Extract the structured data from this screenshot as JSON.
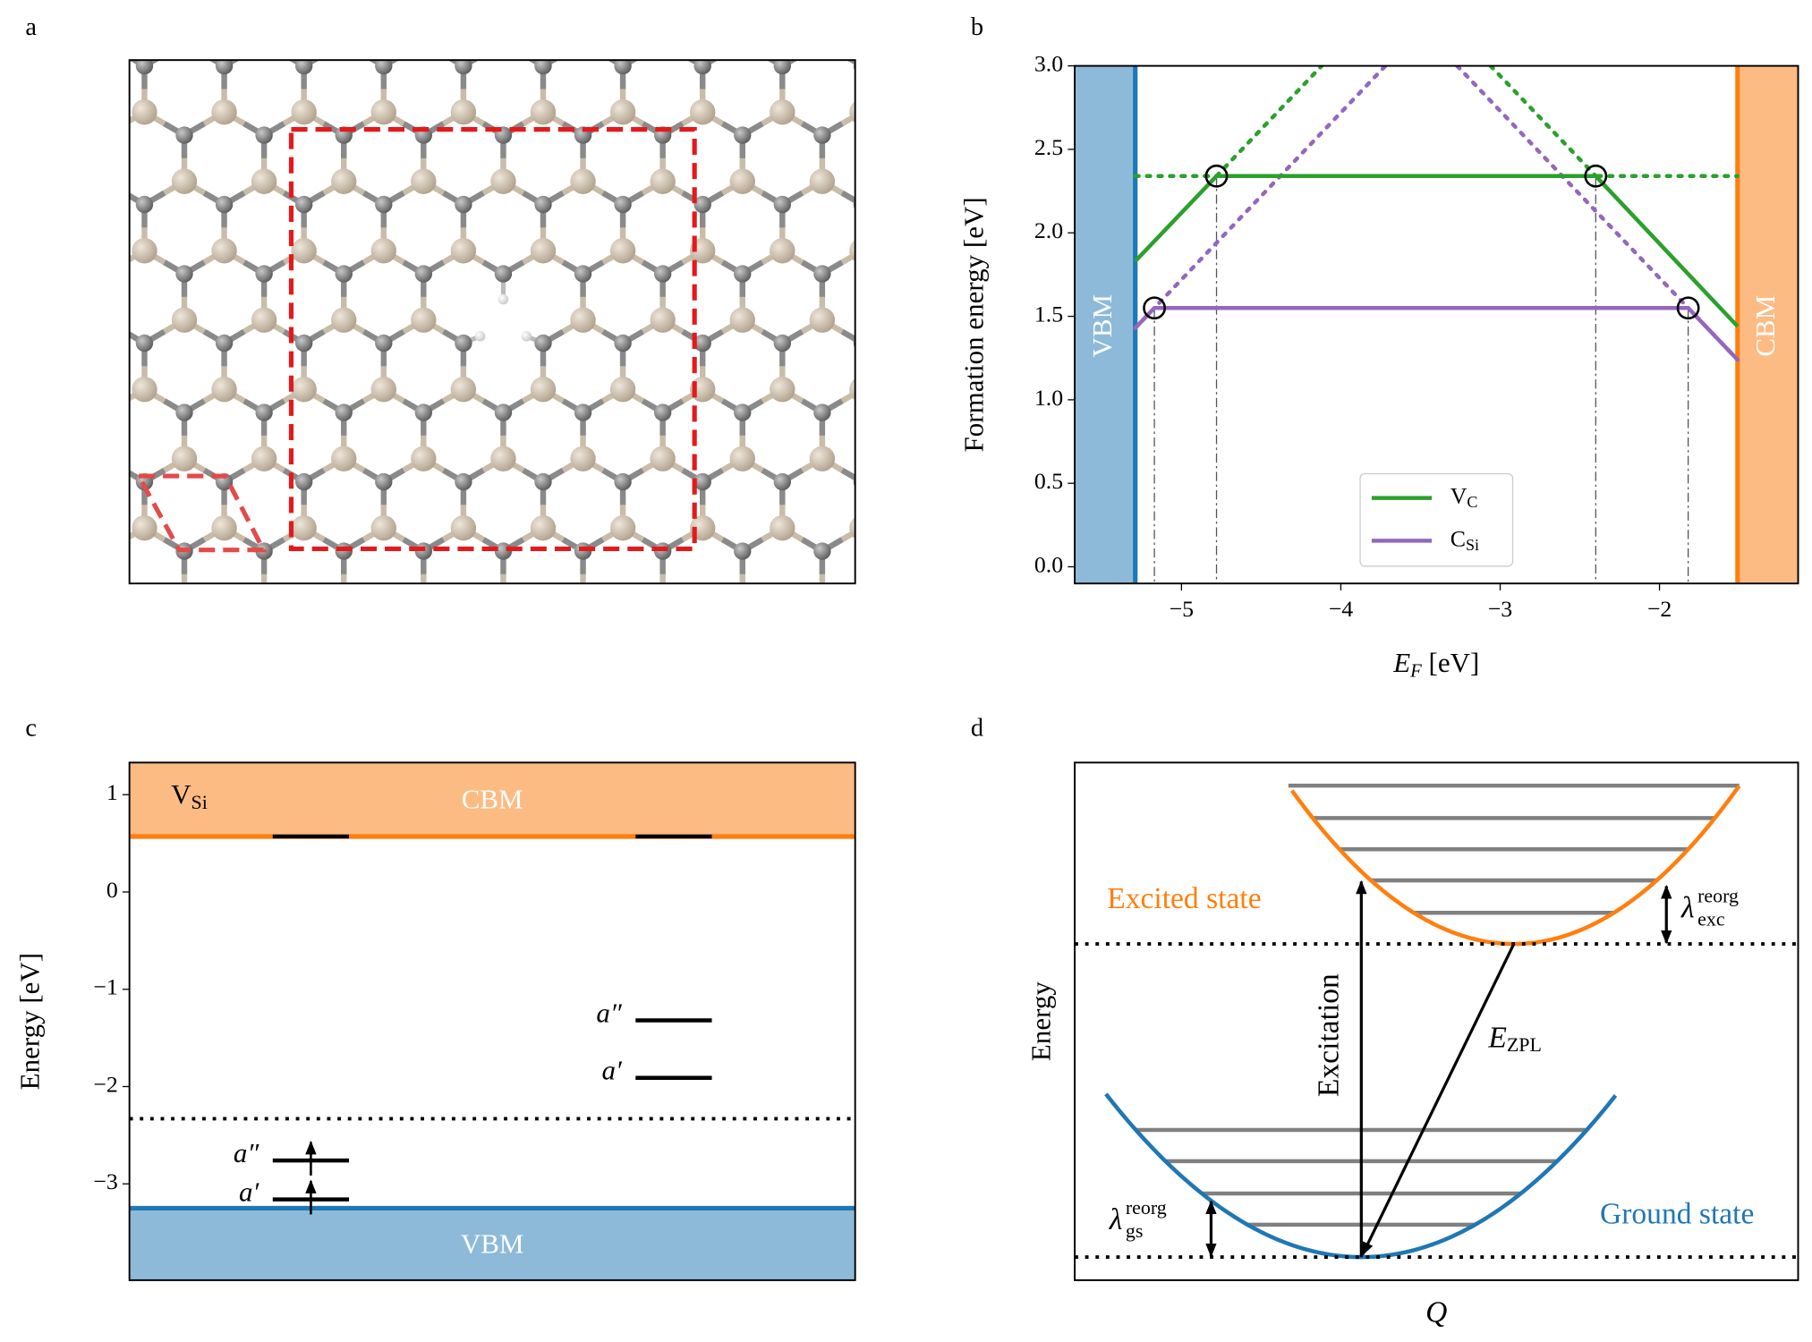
{
  "chart_data": [
    {
      "type": "structure",
      "panel": "a"
    },
    {
      "type": "line",
      "panel": "b",
      "xlabel": {
        "symbol": "E",
        "sub": "F",
        "unit": "[eV]"
      },
      "ylabel": "Formation energy [eV]",
      "xlim": [
        -5.67,
        -1.13
      ],
      "ylim": [
        -0.1,
        3.0
      ],
      "xticks": [
        {
          "value": -5,
          "label": "−5"
        },
        {
          "value": -4,
          "label": "−4"
        },
        {
          "value": -3,
          "label": "−3"
        },
        {
          "value": -2,
          "label": "−2"
        }
      ],
      "yticks": [
        {
          "value": 0,
          "label": "0.0"
        },
        0.5,
        {
          "value": 1,
          "label": "1.0"
        },
        1.5,
        {
          "value": 2,
          "label": "2.0"
        },
        2.5,
        {
          "value": 3,
          "label": "3.0"
        }
      ],
      "vbm": {
        "label": "VBM",
        "x": -5.29,
        "color": "#1f77b4",
        "fill": "#8ebad9"
      },
      "cbm": {
        "label": "CBM",
        "x": -1.51,
        "color": "#ff7f0e",
        "fill": "#fdbb84"
      },
      "series": [
        {
          "name": "V",
          "subscript": "C",
          "color": "#2ca02c",
          "x": [
            -5.29,
            -4.78,
            -2.4,
            -1.51
          ],
          "values": [
            1.83,
            2.34,
            2.34,
            1.44
          ]
        },
        {
          "name": "C",
          "subscript": "Si",
          "color": "#9467bd",
          "x": [
            -5.29,
            -5.17,
            -1.82,
            -1.51
          ],
          "values": [
            1.43,
            1.55,
            1.55,
            1.24
          ]
        }
      ],
      "dotted": [
        {
          "color": "#2ca02c",
          "x": [
            -5.29,
            -1.51
          ],
          "values": [
            2.34,
            2.34
          ]
        },
        {
          "color": "#2ca02c",
          "x": [
            -4.78,
            -4.12
          ],
          "values": [
            2.34,
            3.0
          ]
        },
        {
          "color": "#2ca02c",
          "x": [
            -3.06,
            -2.4
          ],
          "values": [
            3.0,
            2.34
          ]
        },
        {
          "color": "#9467bd",
          "x": [
            -5.29,
            -3.72
          ],
          "values": [
            1.43,
            3.0
          ]
        },
        {
          "color": "#9467bd",
          "x": [
            -3.27,
            -1.51
          ],
          "values": [
            3.0,
            1.24
          ]
        }
      ],
      "transitions": {
        "x": [
          -4.78,
          -2.4,
          -5.17,
          -1.82
        ],
        "values": [
          2.34,
          2.34,
          1.55,
          1.55
        ]
      },
      "legend": "lower center"
    },
    {
      "type": "levels",
      "panel": "c",
      "ylabel": "Energy [eV]",
      "ylim": [
        -3.99,
        1.33
      ],
      "yticks": [
        {
          "value": -3,
          "label": "−3"
        },
        {
          "value": -2,
          "label": "−2"
        },
        {
          "value": -1,
          "label": "−1"
        },
        0,
        1
      ],
      "defect": {
        "name": "V",
        "subscript": "Si"
      },
      "cbm": {
        "label": "CBM",
        "value": 0.57,
        "color": "#ff7f0e",
        "fill": "#fdbb84"
      },
      "vbm": {
        "label": "VBM",
        "value": -3.25,
        "color": "#1f77b4",
        "fill": "#8ebad9"
      },
      "reference_level": -2.33,
      "columns": [
        {
          "labels": [
            null,
            "a″",
            "a′"
          ],
          "values": [
            0.57,
            -2.76,
            -3.16
          ],
          "occupied": [
            false,
            true,
            true
          ]
        },
        {
          "labels": [
            null,
            "a″",
            "a′"
          ],
          "values": [
            0.57,
            -1.32,
            -1.91
          ],
          "occupied": [
            false,
            false,
            false
          ]
        }
      ]
    },
    {
      "type": "diagram",
      "panel": "d",
      "ylabel": "Energy",
      "xlabel": "Q",
      "excited_label": "Excited state",
      "ground_label": "Ground state",
      "excitation": "Excitation",
      "zpl": {
        "symbol": "E",
        "sub": "ZPL"
      },
      "lambda_exc": {
        "symbol": "λ",
        "sup": "reorg",
        "sub": "exc"
      },
      "lambda_gs": {
        "symbol": "λ",
        "sup": "reorg",
        "sub": "gs"
      }
    }
  ]
}
